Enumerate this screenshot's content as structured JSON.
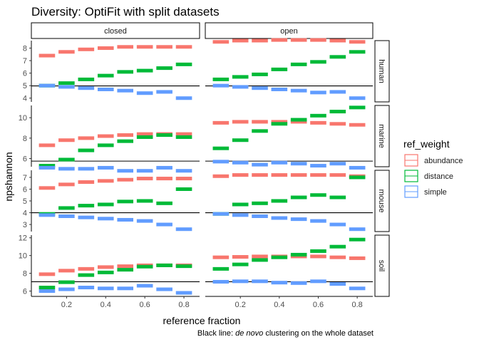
{
  "chart_data": {
    "type": "crossbar-facet",
    "title": "Diversity: OptiFit with split datasets",
    "xlabel": "reference fraction",
    "ylabel": "npshannon",
    "caption_prefix": "Black line: ",
    "caption_italic": "de novo",
    "caption_suffix": " clustering on the whole dataset",
    "xlim": [
      0.02,
      0.88
    ],
    "x_ticks": [
      0.2,
      0.4,
      0.6,
      0.8
    ],
    "x_tick_labels": [
      "0.2",
      "0.4",
      "0.6",
      "0.8"
    ],
    "x": [
      0.1,
      0.2,
      0.3,
      0.4,
      0.5,
      0.6,
      0.7,
      0.8
    ],
    "columns": [
      "closed",
      "open"
    ],
    "legend": {
      "title": "ref_weight",
      "entries": [
        {
          "name": "abundance",
          "color": "#F8766D"
        },
        {
          "name": "distance",
          "color": "#00BA38"
        },
        {
          "name": "simple",
          "color": "#619CFF"
        }
      ]
    },
    "rows": [
      {
        "name": "human",
        "ylim": [
          3.7,
          8.6
        ],
        "y_ticks": [
          4,
          5,
          6,
          7,
          8
        ],
        "y_tick_labels": [
          "4",
          "5",
          "6",
          "7",
          "8"
        ],
        "denovo": 4.98,
        "panels": [
          {
            "abundance": [
              7.4,
              7.7,
              7.9,
              8.0,
              8.1,
              8.1,
              8.1,
              8.1
            ],
            "distance": [
              5.0,
              5.2,
              5.5,
              5.8,
              6.1,
              6.2,
              6.4,
              6.7
            ],
            "simple": [
              5.0,
              4.9,
              4.8,
              4.7,
              4.6,
              4.4,
              4.5,
              4.0
            ]
          },
          {
            "abundance": [
              8.5,
              8.6,
              8.6,
              8.65,
              8.65,
              8.65,
              8.6,
              8.5
            ],
            "distance": [
              5.5,
              5.7,
              5.9,
              6.3,
              6.7,
              6.9,
              7.3,
              7.7
            ],
            "simple": [
              5.0,
              4.9,
              4.8,
              4.7,
              4.6,
              4.45,
              4.5,
              4.0
            ]
          }
        ]
      },
      {
        "name": "marine",
        "ylim": [
          5.2,
          11.2
        ],
        "y_ticks": [
          6,
          8,
          10
        ],
        "y_tick_labels": [
          "6",
          "8",
          "10"
        ],
        "denovo": 5.75,
        "panels": [
          {
            "abundance": [
              7.3,
              7.8,
              8.0,
              8.2,
              8.3,
              8.4,
              8.4,
              8.4
            ],
            "distance": [
              5.3,
              5.9,
              6.8,
              7.3,
              7.7,
              8.1,
              8.3,
              8.1
            ],
            "simple": [
              5.1,
              5.0,
              5.0,
              5.1,
              4.8,
              4.8,
              5.1,
              4.8
            ]
          },
          {
            "abundance": [
              9.5,
              9.6,
              9.6,
              9.6,
              9.6,
              9.5,
              9.4,
              9.3
            ],
            "distance": [
              7.0,
              7.8,
              8.7,
              9.4,
              9.8,
              10.2,
              10.6,
              11.0
            ],
            "simple": [
              5.7,
              5.6,
              5.4,
              5.6,
              5.5,
              5.3,
              5.5,
              5.1
            ]
          }
        ]
      },
      {
        "name": "mouse",
        "ylim": [
          2.4,
          7.6
        ],
        "y_ticks": [
          3,
          4,
          5,
          6,
          7
        ],
        "y_tick_labels": [
          "3",
          "4",
          "5",
          "6",
          "7"
        ],
        "denovo": 4.0,
        "panels": [
          {
            "abundance": [
              6.1,
              6.4,
              6.6,
              6.7,
              6.8,
              6.9,
              6.9,
              6.9
            ],
            "distance": [
              3.9,
              4.4,
              4.6,
              4.7,
              4.95,
              5.0,
              4.8,
              6.0
            ],
            "simple": [
              3.8,
              3.7,
              3.6,
              3.5,
              3.4,
              3.3,
              3.0,
              2.6
            ]
          },
          {
            "abundance": [
              7.1,
              7.2,
              7.2,
              7.2,
              7.2,
              7.2,
              7.2,
              7.1
            ],
            "distance": [
              3.9,
              4.7,
              4.8,
              5.0,
              5.3,
              5.5,
              5.3,
              7.0
            ],
            "simple": [
              3.9,
              3.8,
              3.7,
              3.55,
              3.45,
              3.3,
              3.0,
              2.6
            ]
          }
        ]
      },
      {
        "name": "soil",
        "ylim": [
          5.4,
          12.3
        ],
        "y_ticks": [
          6,
          8,
          10,
          12
        ],
        "y_tick_labels": [
          "6",
          "8",
          "10",
          "12"
        ],
        "denovo": 7.05,
        "panels": [
          {
            "abundance": [
              7.9,
              8.3,
              8.5,
              8.7,
              8.8,
              8.9,
              8.9,
              8.9
            ],
            "distance": [
              6.4,
              7.0,
              7.8,
              8.1,
              8.4,
              8.75,
              8.9,
              8.8
            ],
            "simple": [
              6.0,
              6.2,
              6.4,
              6.3,
              6.3,
              6.6,
              6.2,
              5.8
            ]
          },
          {
            "abundance": [
              9.8,
              9.85,
              9.9,
              9.9,
              9.9,
              9.9,
              9.8,
              9.7
            ],
            "distance": [
              8.5,
              9.0,
              9.5,
              9.8,
              10.1,
              10.5,
              11.0,
              11.8
            ],
            "simple": [
              7.05,
              7.1,
              7.1,
              6.95,
              6.9,
              7.1,
              6.8,
              6.3
            ]
          }
        ]
      }
    ]
  }
}
